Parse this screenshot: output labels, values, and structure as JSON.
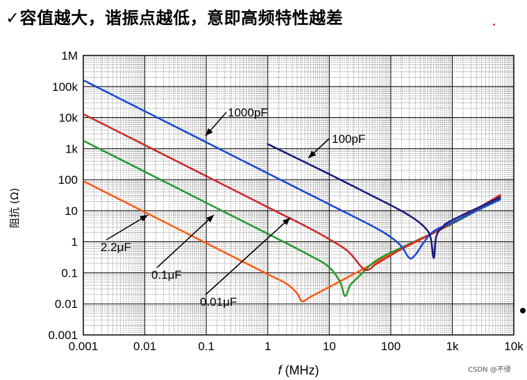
{
  "header": {
    "title": "✓容值越大，谐振点越低，意即高频特性越差"
  },
  "watermark": "CSDN @不侵",
  "chart_data": {
    "type": "line",
    "xscale": "log",
    "yscale": "log",
    "xlim": [
      0.001,
      10000
    ],
    "ylim": [
      0.001,
      1000000
    ],
    "grid": true,
    "xlabel_italic": "f",
    "xlabel_rest": " (MHz)",
    "ylabel": "阻抗 (Ω)",
    "x_ticks": [
      {
        "v": 0.001,
        "label": "0.001"
      },
      {
        "v": 0.01,
        "label": "0.01"
      },
      {
        "v": 0.1,
        "label": "0.1"
      },
      {
        "v": 1,
        "label": "1"
      },
      {
        "v": 10,
        "label": "10"
      },
      {
        "v": 100,
        "label": "100"
      },
      {
        "v": 1000,
        "label": "1k"
      },
      {
        "v": 10000,
        "label": "10k"
      }
    ],
    "y_ticks": [
      {
        "v": 0.001,
        "label": "0.001"
      },
      {
        "v": 0.01,
        "label": "0.01"
      },
      {
        "v": 0.1,
        "label": "0.1"
      },
      {
        "v": 1,
        "label": "1"
      },
      {
        "v": 10,
        "label": "10"
      },
      {
        "v": 100,
        "label": "100"
      },
      {
        "v": 1000,
        "label": "1k"
      },
      {
        "v": 10000,
        "label": "10k"
      },
      {
        "v": 100000,
        "label": "100k"
      },
      {
        "v": 1000000,
        "label": "1M"
      }
    ],
    "series": [
      {
        "name": "2.2μF",
        "color": "#ff5a14",
        "x": [
          0.001,
          0.01,
          0.1,
          1,
          2,
          3,
          3.6,
          5,
          10,
          50,
          200,
          1000,
          6000
        ],
        "y": [
          90,
          9,
          0.9,
          0.09,
          0.045,
          0.022,
          0.012,
          0.017,
          0.035,
          0.19,
          0.78,
          3.9,
          30
        ]
      },
      {
        "name": "0.1μF",
        "color": "#2a9a2a",
        "x": [
          0.001,
          0.01,
          0.1,
          1,
          5,
          10,
          15,
          18,
          22,
          30,
          60,
          200,
          1000,
          6000
        ],
        "y": [
          1800,
          180,
          18,
          1.8,
          0.35,
          0.15,
          0.05,
          0.018,
          0.04,
          0.075,
          0.26,
          0.85,
          3.8,
          26
        ]
      },
      {
        "name": "0.01μF",
        "color": "#d02a2a",
        "x": [
          0.001,
          0.01,
          0.1,
          1,
          5,
          10,
          20,
          35,
          45,
          60,
          200,
          1000,
          6000
        ],
        "y": [
          13000,
          1300,
          130,
          13,
          2.6,
          1.2,
          0.5,
          0.14,
          0.13,
          0.2,
          0.8,
          4,
          32
        ]
      },
      {
        "name": "1000pF",
        "color": "#1a4ad4",
        "x": [
          0.001,
          0.01,
          0.1,
          1,
          10,
          50,
          100,
          150,
          200,
          250,
          350,
          500,
          1000,
          6000
        ],
        "y": [
          160000,
          16000,
          1600,
          160,
          16,
          3.2,
          1.4,
          0.7,
          0.3,
          0.38,
          1,
          2.2,
          4.2,
          23
        ]
      },
      {
        "name": "100pF",
        "color": "#1a1a7a",
        "x": [
          1,
          10,
          100,
          200,
          300,
          400,
          450,
          500,
          550,
          700,
          1000,
          6000
        ],
        "y": [
          1400,
          150,
          15,
          7,
          4,
          2.2,
          1.2,
          0.3,
          1.5,
          3,
          5,
          27
        ]
      }
    ],
    "annotations": [
      {
        "label": "1000pF",
        "series": "1000pF"
      },
      {
        "label": "100pF",
        "series": "100pF"
      },
      {
        "label": "2.2μF",
        "series": "2.2μF"
      },
      {
        "label": "0.1μF",
        "series": "0.1μF"
      },
      {
        "label": "0.01μF",
        "series": "0.01μF"
      }
    ]
  }
}
